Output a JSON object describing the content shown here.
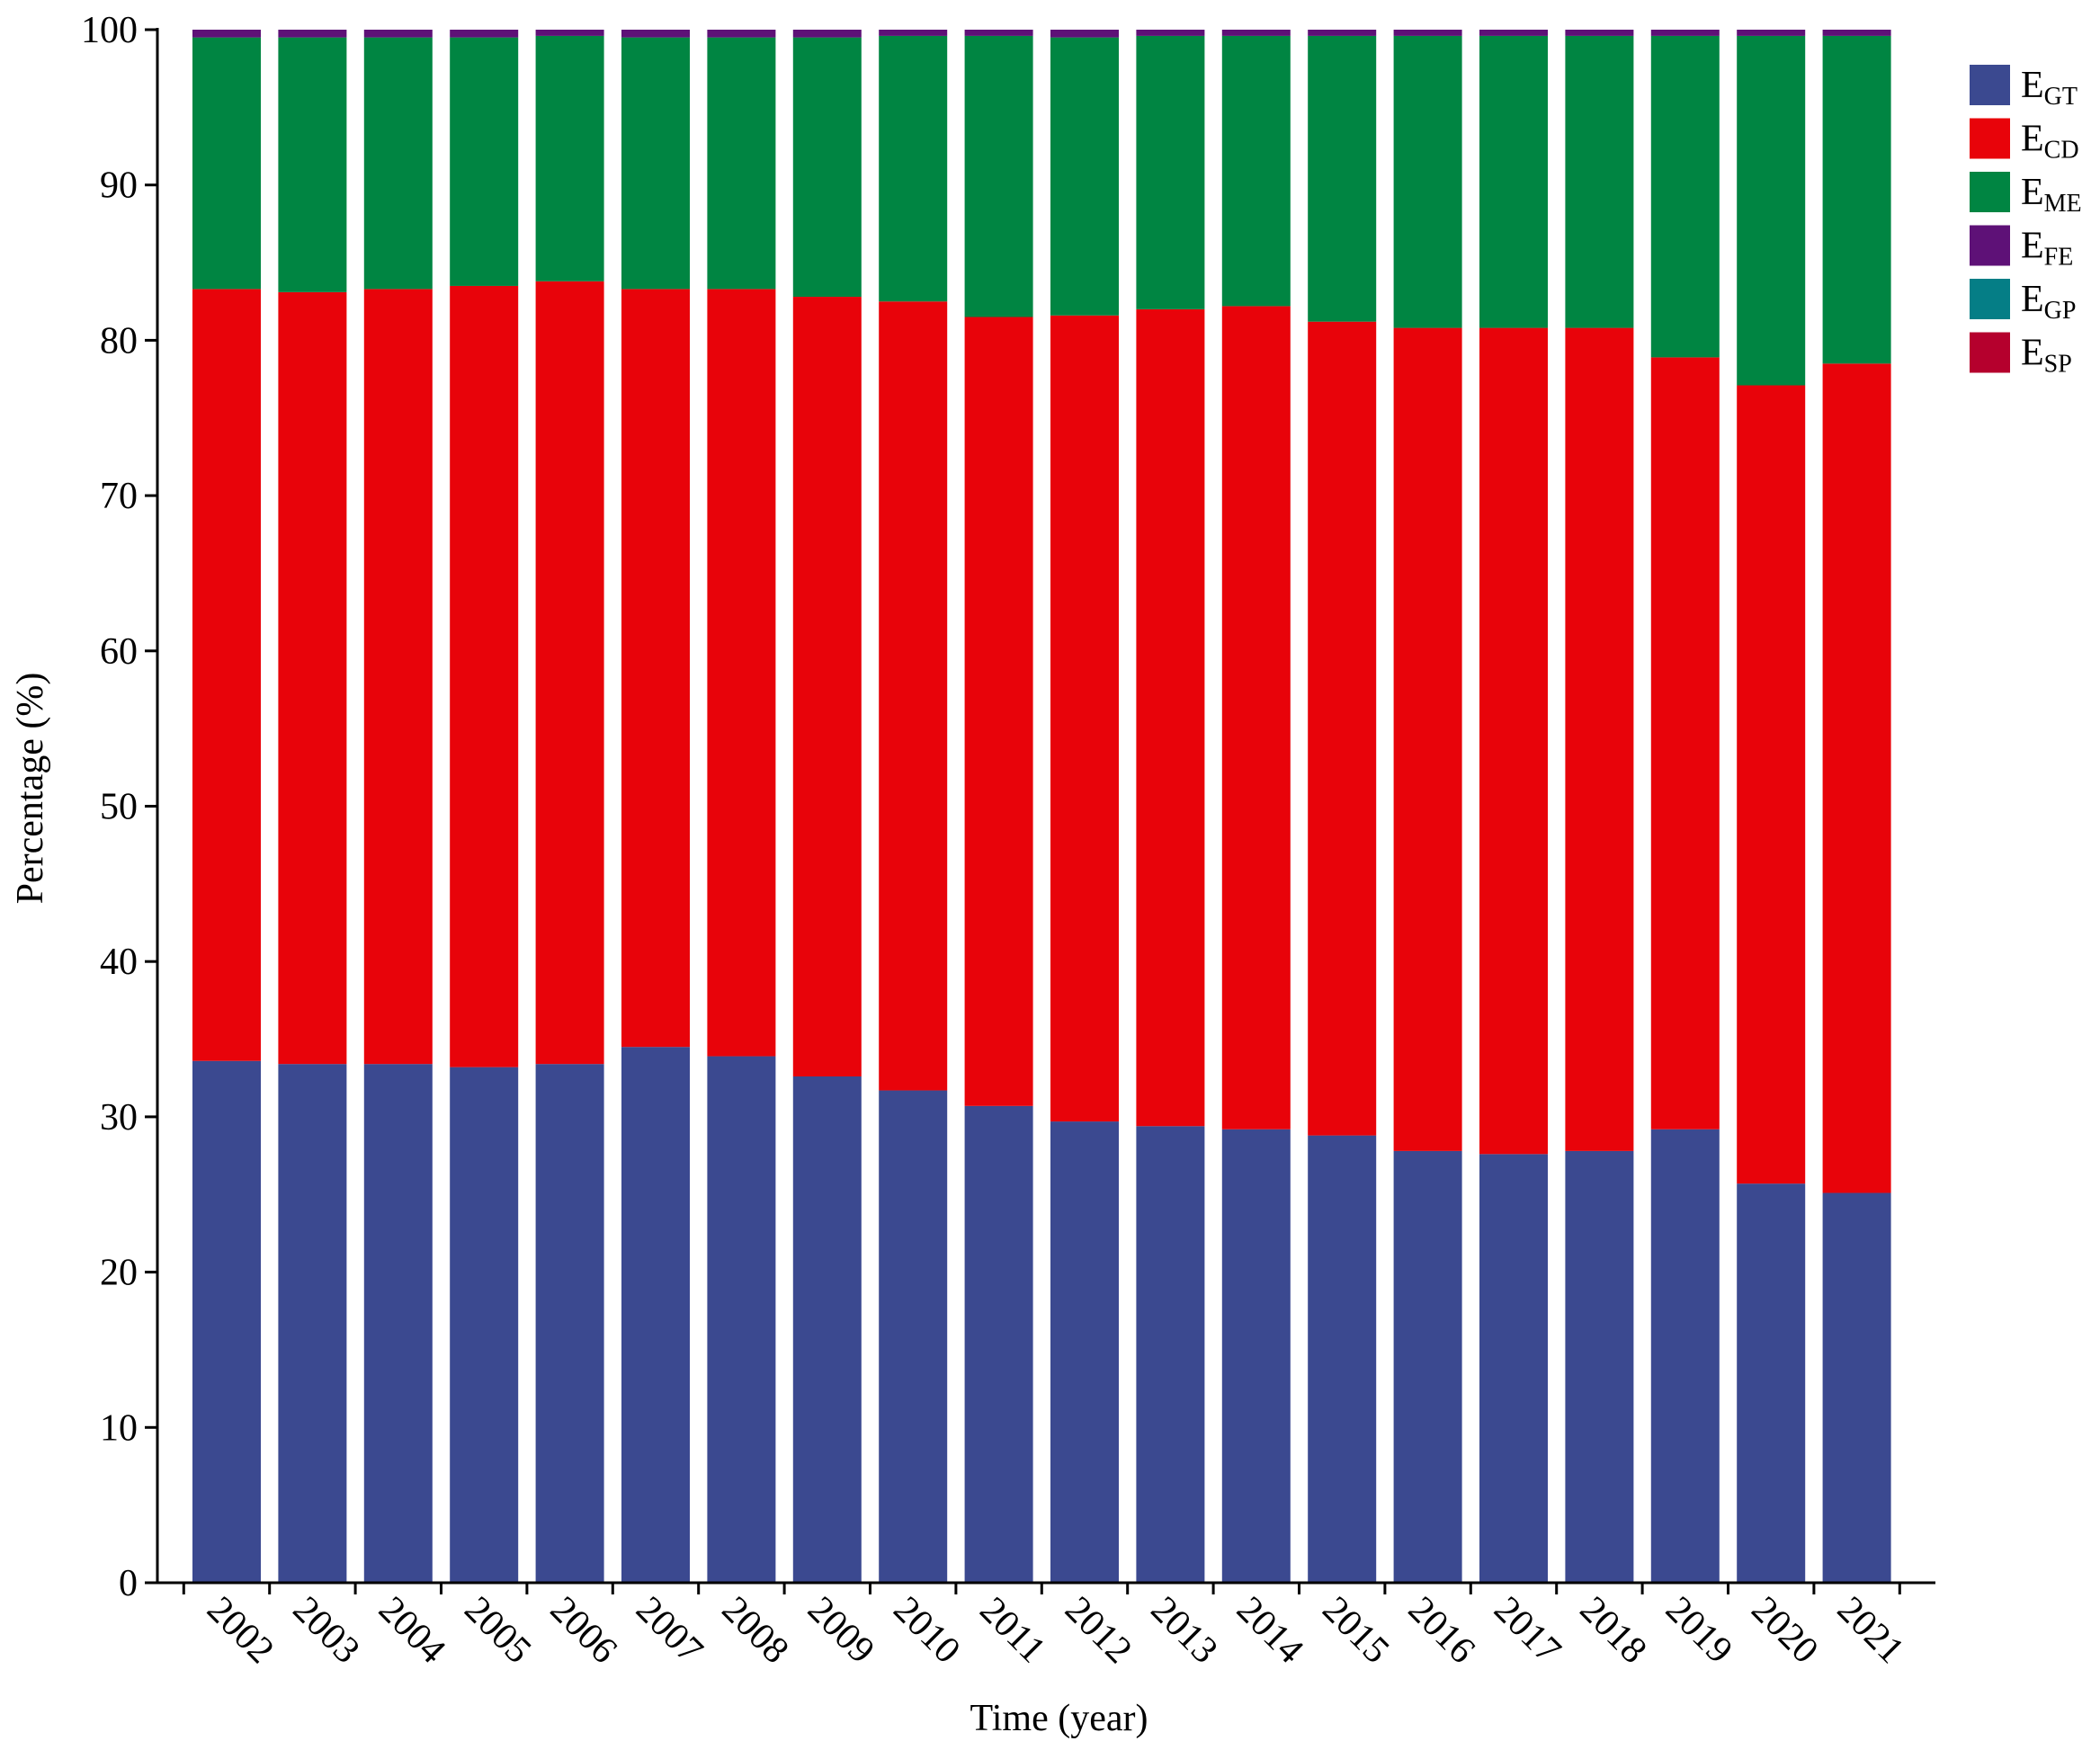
{
  "chart_data": {
    "type": "bar",
    "stacked": true,
    "xlabel": "Time (year)",
    "ylabel": "Percentage (%)",
    "ylim": [
      0,
      100
    ],
    "yticks": [
      0,
      10,
      20,
      30,
      40,
      50,
      60,
      70,
      80,
      90,
      100
    ],
    "grid": false,
    "legend_position": "right",
    "categories": [
      "2002",
      "2003",
      "2004",
      "2005",
      "2006",
      "2007",
      "2008",
      "2009",
      "2010",
      "2011",
      "2012",
      "2013",
      "2014",
      "2015",
      "2016",
      "2017",
      "2018",
      "2019",
      "2020",
      "2021"
    ],
    "series": [
      {
        "name": "E",
        "sub": "GT",
        "color": "#3b4990",
        "values": [
          33.6,
          33.4,
          33.4,
          33.2,
          33.4,
          34.5,
          33.9,
          32.6,
          31.7,
          30.7,
          29.7,
          29.4,
          29.2,
          28.8,
          27.8,
          27.6,
          27.8,
          29.2,
          25.7,
          25.1
        ]
      },
      {
        "name": "E",
        "sub": "CD",
        "color": "#e8030a",
        "values": [
          49.7,
          49.7,
          49.9,
          50.3,
          50.4,
          48.8,
          49.4,
          50.2,
          50.8,
          50.8,
          51.9,
          52.6,
          53.0,
          52.4,
          53.0,
          53.2,
          53.0,
          49.7,
          51.4,
          53.4
        ]
      },
      {
        "name": "E",
        "sub": "ME",
        "color": "#008542",
        "values": [
          16.2,
          16.4,
          16.2,
          16.0,
          15.8,
          16.2,
          16.2,
          16.7,
          17.1,
          18.1,
          17.9,
          17.6,
          17.4,
          18.4,
          18.8,
          18.8,
          18.8,
          20.7,
          22.5,
          21.1
        ]
      },
      {
        "name": "E",
        "sub": "FE",
        "color": "#5e1177",
        "values": [
          0.5,
          0.5,
          0.5,
          0.5,
          0.4,
          0.5,
          0.5,
          0.5,
          0.4,
          0.4,
          0.5,
          0.4,
          0.4,
          0.4,
          0.4,
          0.4,
          0.4,
          0.4,
          0.4,
          0.4
        ]
      },
      {
        "name": "E",
        "sub": "GP",
        "color": "#057e86",
        "values": [
          0,
          0,
          0,
          0,
          0,
          0,
          0,
          0,
          0,
          0,
          0,
          0,
          0,
          0,
          0,
          0,
          0,
          0,
          0,
          0
        ]
      },
      {
        "name": "E",
        "sub": "SP",
        "color": "#b5002d",
        "values": [
          0,
          0,
          0,
          0,
          0,
          0,
          0,
          0,
          0,
          0,
          0,
          0,
          0,
          0,
          0,
          0,
          0,
          0,
          0,
          0
        ]
      }
    ]
  }
}
